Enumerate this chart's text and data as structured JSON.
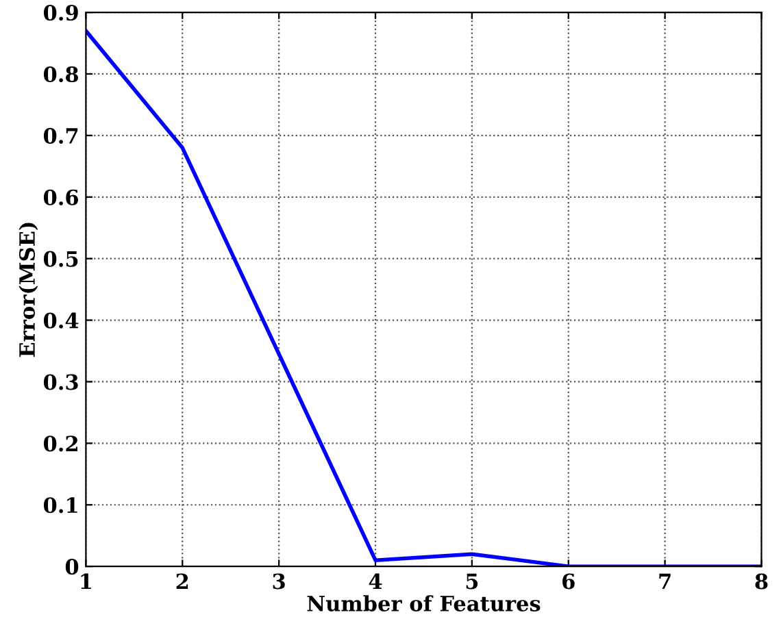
{
  "chart_data": {
    "type": "line",
    "xlabel": "Number of Features",
    "ylabel": "Error(MSE)",
    "x": [
      1,
      2,
      3,
      4,
      5,
      6,
      7,
      8
    ],
    "series": [
      {
        "color": "#0000ff",
        "values": [
          0.87,
          0.68,
          0.345,
          0.01,
          0.02,
          0.0,
          0.0,
          0.0
        ]
      }
    ],
    "xlim": [
      1,
      8
    ],
    "xticks": [
      1,
      2,
      3,
      4,
      5,
      6,
      7,
      8
    ],
    "ylim": [
      0,
      0.9
    ],
    "yticks": [
      0,
      0.1,
      0.2,
      0.3,
      0.4,
      0.5,
      0.6,
      0.7,
      0.8,
      0.9
    ],
    "grid": true,
    "line_style": "solid",
    "marker": "none",
    "legend": false
  }
}
